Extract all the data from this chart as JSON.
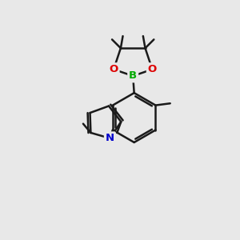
{
  "background_color": "#e8e8e8",
  "bond_color": "#1a1a1a",
  "bond_width": 1.8,
  "N_color": "#0000cc",
  "O_color": "#dd0000",
  "B_color": "#00aa00",
  "figsize": [
    3.0,
    3.0
  ],
  "dpi": 100,
  "xlim": [
    0,
    10
  ],
  "ylim": [
    0,
    10
  ]
}
